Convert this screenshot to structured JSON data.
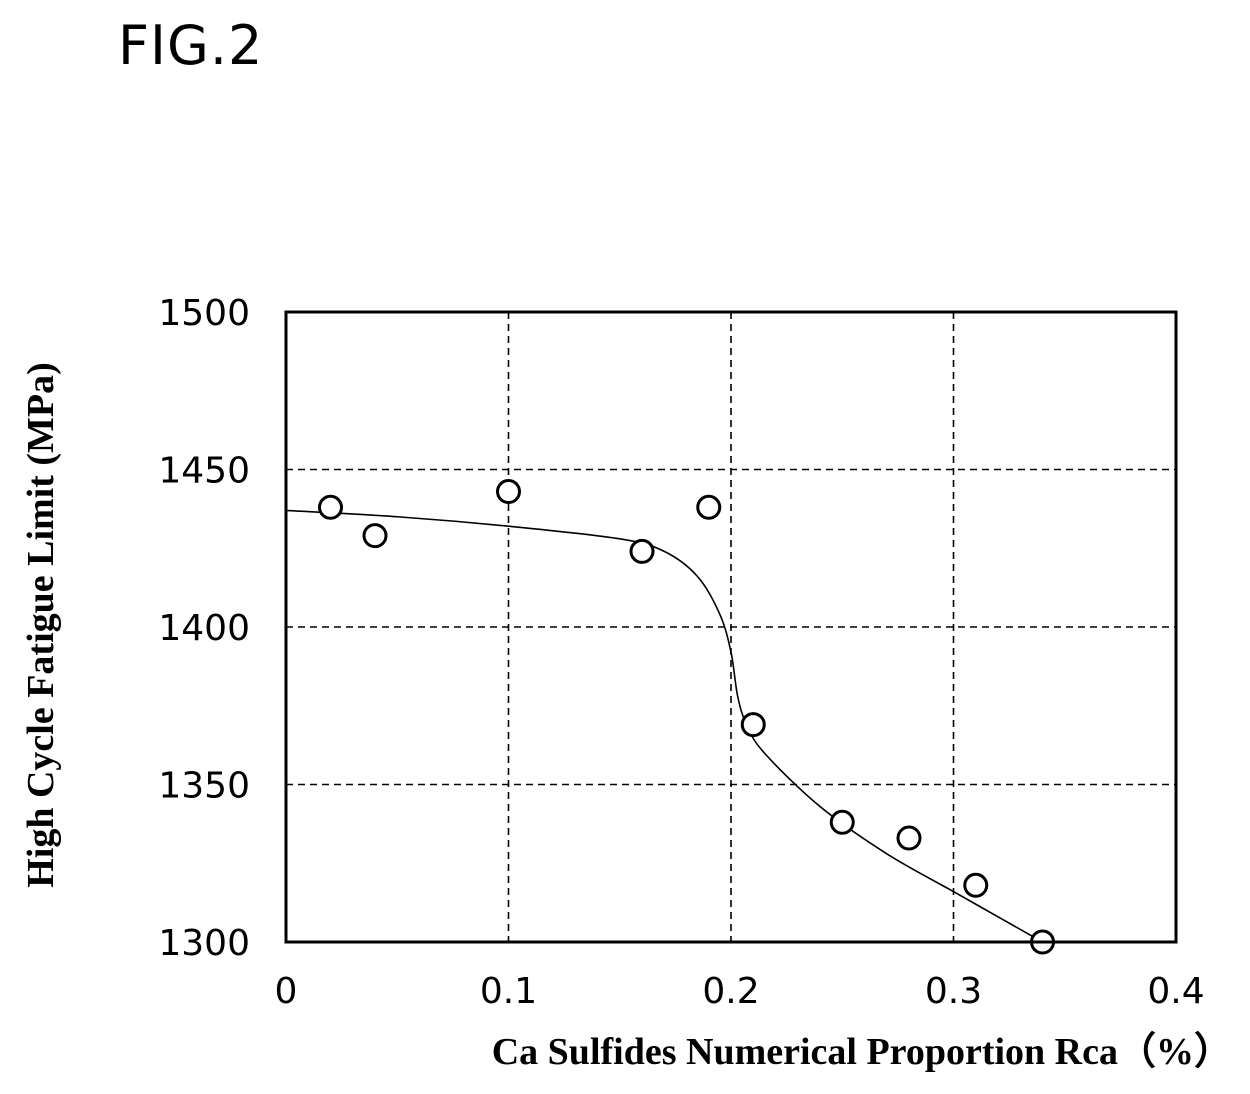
{
  "figure_label": "FIG.2",
  "chart_data": {
    "type": "scatter",
    "title": "",
    "xlabel": "Ca Sulfides Numerical Proportion Rca（%）",
    "ylabel": "High Cycle Fatigue Limit (MPa)",
    "xlim": [
      0,
      0.4
    ],
    "ylim": [
      1300,
      1500
    ],
    "xticks": [
      0,
      0.1,
      0.2,
      0.3,
      0.4
    ],
    "xtick_labels": [
      "0",
      "0.1",
      "0.2",
      "0.3",
      "0.4"
    ],
    "yticks": [
      1300,
      1350,
      1400,
      1450,
      1500
    ],
    "ytick_labels": [
      "1300",
      "1350",
      "1400",
      "1450",
      "1500"
    ],
    "grid": true,
    "grid_style": "dashed",
    "marker": "open-circle",
    "points": [
      {
        "x": 0.02,
        "y": 1438
      },
      {
        "x": 0.04,
        "y": 1429
      },
      {
        "x": 0.1,
        "y": 1443
      },
      {
        "x": 0.16,
        "y": 1424
      },
      {
        "x": 0.19,
        "y": 1438
      },
      {
        "x": 0.21,
        "y": 1369
      },
      {
        "x": 0.25,
        "y": 1338
      },
      {
        "x": 0.28,
        "y": 1333
      },
      {
        "x": 0.31,
        "y": 1318
      },
      {
        "x": 0.34,
        "y": 1300
      }
    ],
    "trend_line": [
      {
        "x": 0.0,
        "y": 1437
      },
      {
        "x": 0.05,
        "y": 1435
      },
      {
        "x": 0.1,
        "y": 1432
      },
      {
        "x": 0.15,
        "y": 1428
      },
      {
        "x": 0.17,
        "y": 1424
      },
      {
        "x": 0.185,
        "y": 1416
      },
      {
        "x": 0.195,
        "y": 1404
      },
      {
        "x": 0.2,
        "y": 1392
      },
      {
        "x": 0.203,
        "y": 1378
      },
      {
        "x": 0.207,
        "y": 1369
      },
      {
        "x": 0.215,
        "y": 1360
      },
      {
        "x": 0.24,
        "y": 1343
      },
      {
        "x": 0.27,
        "y": 1328
      },
      {
        "x": 0.3,
        "y": 1316
      },
      {
        "x": 0.32,
        "y": 1308
      },
      {
        "x": 0.34,
        "y": 1300
      }
    ]
  }
}
